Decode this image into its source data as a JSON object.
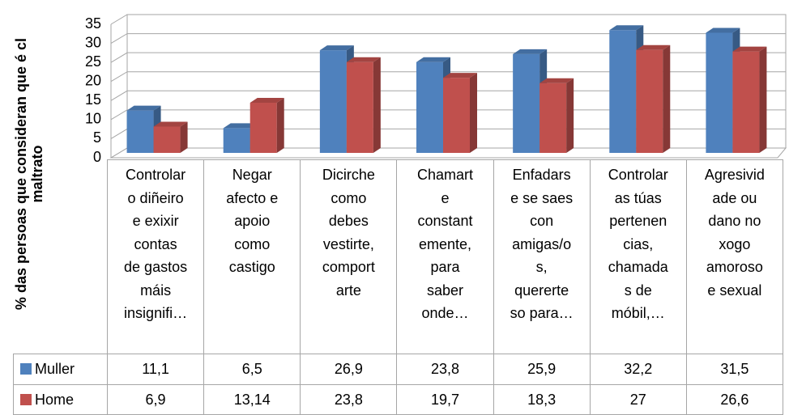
{
  "chart_data": {
    "type": "bar3d",
    "y_label": "% das persoas que consideran que é cl\nmaltrato",
    "categories": [
      "Controlar\no diñeiro\ne exixir\ncontas\nde gastos\nmáis\ninsignifi…",
      "Negar\nafecto e\napoio\ncomo\ncastigo",
      "Dicirche\ncomo\ndebes\nvestirte,\ncomport\narte",
      "Chamart\ne\nconstant\nemente,\npara\nsaber\nonde…",
      "Enfadars\ne se saes\ncon\namigas/o\ns,\nquererte\nso para…",
      "Controlar\nas túas\npertenen\ncias,\nchamada\ns de\nmóbil,…",
      "Agresivid\nade ou\ndano no\nxogo\namoroso\ne sexual"
    ],
    "series": [
      {
        "name": "Muller",
        "color": "#4f81bd",
        "values": [
          11.1,
          6.5,
          26.9,
          23.8,
          25.9,
          32.2,
          31.5
        ],
        "value_labels": [
          "11,1",
          "6,5",
          "26,9",
          "23,8",
          "25,9",
          "32,2",
          "31,5"
        ]
      },
      {
        "name": "Home",
        "color": "#c0504d",
        "values": [
          6.9,
          13.14,
          23.8,
          19.7,
          18.3,
          27,
          26.6
        ],
        "value_labels": [
          "6,9",
          "13,14",
          "23,8",
          "19,7",
          "18,3",
          "27",
          "26,6"
        ]
      }
    ],
    "ylim": [
      0,
      35
    ],
    "yticks": [
      0,
      5,
      10,
      15,
      20,
      25,
      30,
      35
    ],
    "grid": true
  }
}
